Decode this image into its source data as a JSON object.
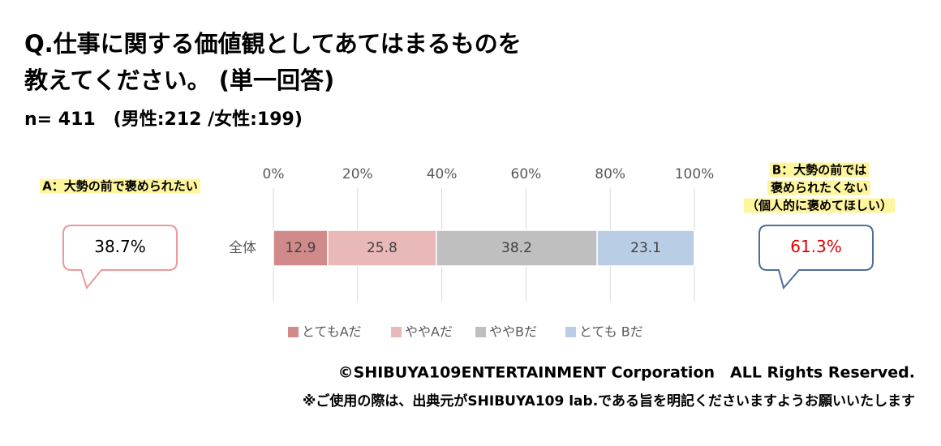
{
  "chart_data": {
    "type": "stacked-bar-horizontal",
    "title_lines": [
      "Q.仕事に関する価値観としてあてはまるものを",
      "教えてください。 (単一回答)"
    ],
    "subtitle": "n= 411　(男性:212 /女性:199)",
    "categories": [
      "全体"
    ],
    "series": [
      {
        "name": "とてもAだ",
        "color": "#d08a8a",
        "values": [
          12.9
        ]
      },
      {
        "name": "ややAだ",
        "color": "#e9b8b8",
        "values": [
          25.8
        ]
      },
      {
        "name": "ややBだ",
        "color": "#bfbfbf",
        "values": [
          38.2
        ]
      },
      {
        "name": "とても Bだ",
        "color": "#b9cde5",
        "values": [
          23.1
        ]
      }
    ],
    "xlim": [
      0,
      100
    ],
    "xticks": [
      {
        "value": 0,
        "label": "0%"
      },
      {
        "value": 20,
        "label": "20%"
      },
      {
        "value": 40,
        "label": "40%"
      },
      {
        "value": 60,
        "label": "60%"
      },
      {
        "value": 80,
        "label": "80%"
      },
      {
        "value": 100,
        "label": "100%"
      }
    ],
    "grid": true,
    "legend": "bottom",
    "summary": [
      {
        "label_lines": [
          "A：大勢の前で褒められたい"
        ],
        "value": 38.7,
        "value_label": "38.7%",
        "color": "#e89a9a",
        "text_color": "#000000"
      },
      {
        "label_lines": [
          "B：大勢の前では",
          "褒められたくない",
          "（個人的に褒めてほしい）"
        ],
        "value": 61.3,
        "value_label": "61.3%",
        "color": "#4f6d9a",
        "text_color": "#e00000"
      }
    ],
    "notes": [
      "©SHIBUYA109ENTERTAINMENT Corporation　ALL Rights Reserved.",
      "※ご使用の際は、出典元がSHIBUYA109 lab.である旨を明記くださいますようお願いいたします"
    ]
  }
}
